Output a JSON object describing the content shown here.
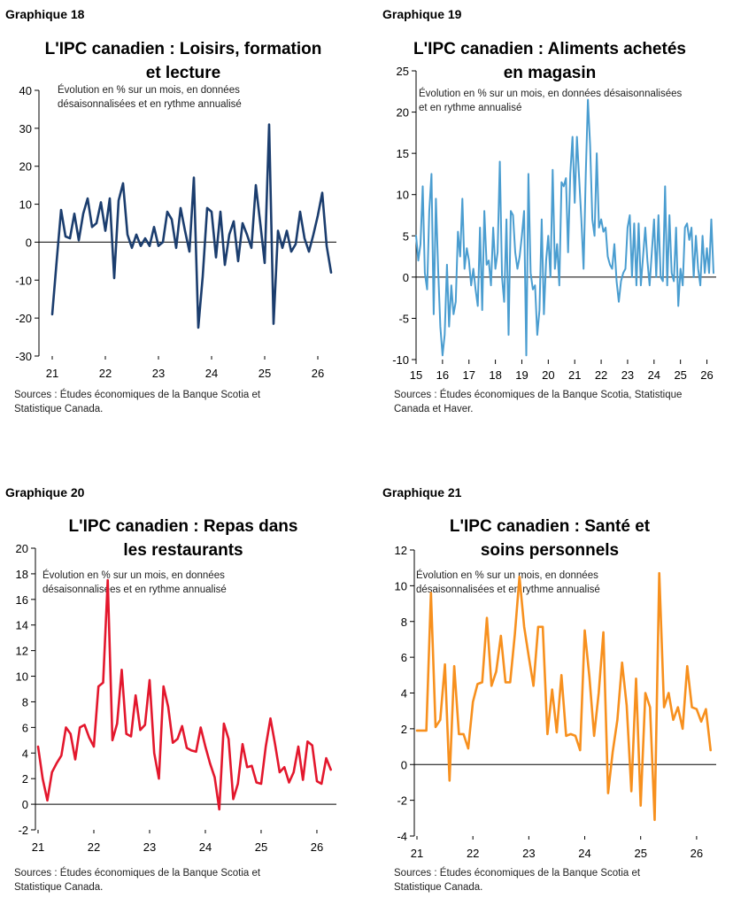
{
  "chart_data": [
    {
      "type": "line",
      "label": "Graphique 18",
      "title_line1": "L'IPC canadien : Loisirs, formation",
      "title_line2": "et lecture",
      "subtitle_line1": "Évolution en % sur un mois, en données",
      "subtitle_line2": "désaisonnalisées et en rythme annualisé",
      "source_line1": "Sources : Études économiques de la Banque Scotia et",
      "source_line2": "Statistique Canada.",
      "color": "#1b3d6e",
      "ylim": [
        -30,
        40
      ],
      "yticks": [
        "-30",
        "-20",
        "-10",
        "0",
        "10",
        "20",
        "30",
        "40"
      ],
      "xlim": [
        21.0,
        26.35
      ],
      "xticks": [
        "21",
        "22",
        "23",
        "24",
        "25",
        "26"
      ],
      "x": [
        21.0,
        21.083,
        21.167,
        21.25,
        21.333,
        21.417,
        21.5,
        21.583,
        21.667,
        21.75,
        21.833,
        21.917,
        22.0,
        22.083,
        22.167,
        22.25,
        22.333,
        22.417,
        22.5,
        22.583,
        22.667,
        22.75,
        22.833,
        22.917,
        23.0,
        23.083,
        23.167,
        23.25,
        23.333,
        23.417,
        23.5,
        23.583,
        23.667,
        23.75,
        23.833,
        23.917,
        24.0,
        24.083,
        24.167,
        24.25,
        24.333,
        24.417,
        24.5,
        24.583,
        24.667,
        24.75,
        24.833,
        24.917,
        25.0,
        25.083,
        25.167,
        25.25,
        25.333,
        25.417,
        25.5,
        25.583,
        25.667,
        25.75,
        25.833,
        25.917,
        26.0,
        26.083,
        26.167,
        26.25
      ],
      "values": [
        -19,
        -5,
        8.5,
        1.5,
        1,
        7.5,
        0.5,
        7.5,
        11.5,
        4,
        5,
        10.5,
        3,
        11.5,
        -9.5,
        11,
        15.5,
        2,
        -1.5,
        2,
        -1,
        1,
        -1,
        4,
        -1,
        0,
        8,
        6,
        -1.5,
        9,
        3,
        -2.5,
        17,
        -22.5,
        -9,
        9,
        8,
        -4,
        8,
        -6,
        2,
        5.5,
        -5,
        5,
        2,
        -1.5,
        15,
        5,
        -5.5,
        31,
        -21.5,
        3,
        -1.5,
        3,
        -2.5,
        -0.5,
        8,
        1,
        -2.5,
        2,
        7,
        13,
        -1,
        -8
      ]
    },
    {
      "type": "line",
      "label": "Graphique 19",
      "title_line1": "L'IPC canadien : Aliments achetés",
      "title_line2": "en magasin",
      "subtitle_line1": "Évolution en % sur un mois, en données désaisonnalisées",
      "subtitle_line2": "et en rythme annualisé",
      "source_line1": "Sources : Études économiques de la Banque Scotia, Statistique",
      "source_line2": "Canada et Haver.",
      "color": "#4a9dd0",
      "ylim": [
        -10,
        25
      ],
      "yticks": [
        "-10",
        "-5",
        "0",
        "5",
        "10",
        "15",
        "20",
        "25"
      ],
      "xlim": [
        15.0,
        26.35
      ],
      "xticks": [
        "15",
        "16",
        "17",
        "18",
        "19",
        "20",
        "21",
        "22",
        "23",
        "24",
        "25",
        "26"
      ],
      "x": [
        15.0,
        15.083,
        15.167,
        15.25,
        15.333,
        15.417,
        15.5,
        15.583,
        15.667,
        15.75,
        15.833,
        15.917,
        16.0,
        16.083,
        16.167,
        16.25,
        16.333,
        16.417,
        16.5,
        16.583,
        16.667,
        16.75,
        16.833,
        16.917,
        17.0,
        17.083,
        17.167,
        17.25,
        17.333,
        17.417,
        17.5,
        17.583,
        17.667,
        17.75,
        17.833,
        17.917,
        18.0,
        18.083,
        18.167,
        18.25,
        18.333,
        18.417,
        18.5,
        18.583,
        18.667,
        18.75,
        18.833,
        18.917,
        19.0,
        19.083,
        19.167,
        19.25,
        19.333,
        19.417,
        19.5,
        19.583,
        19.667,
        19.75,
        19.833,
        19.917,
        20.0,
        20.083,
        20.167,
        20.25,
        20.333,
        20.417,
        20.5,
        20.583,
        20.667,
        20.75,
        20.833,
        20.917,
        21.0,
        21.083,
        21.167,
        21.25,
        21.333,
        21.417,
        21.5,
        21.583,
        21.667,
        21.75,
        21.833,
        21.917,
        22.0,
        22.083,
        22.167,
        22.25,
        22.333,
        22.417,
        22.5,
        22.583,
        22.667,
        22.75,
        22.833,
        22.917,
        23.0,
        23.083,
        23.167,
        23.25,
        23.333,
        23.417,
        23.5,
        23.583,
        23.667,
        23.75,
        23.833,
        23.917,
        24.0,
        24.083,
        24.167,
        24.25,
        24.333,
        24.417,
        24.5,
        24.583,
        24.667,
        24.75,
        24.833,
        24.917,
        25.0,
        25.083,
        25.167,
        25.25,
        25.333,
        25.417,
        25.5,
        25.583,
        25.667,
        25.75,
        25.833,
        25.917,
        26.0,
        26.083,
        26.167,
        26.25
      ],
      "values": [
        5,
        2,
        4,
        11,
        0.5,
        -1.5,
        8,
        12.5,
        -4.5,
        9.5,
        1,
        -6,
        -9.5,
        -7,
        1.5,
        -6,
        -1,
        -4.5,
        -3,
        5.5,
        2.5,
        9.5,
        1,
        3.5,
        2,
        -1,
        1,
        -1.5,
        -3.5,
        6,
        -4,
        8,
        1.5,
        2,
        -1,
        6,
        1,
        3,
        14,
        0,
        -3,
        7,
        -7,
        8,
        7.5,
        3,
        1,
        2.5,
        5,
        8,
        -9.5,
        12.5,
        0.5,
        -1.5,
        -1,
        -7,
        -4,
        7,
        -4.5,
        2,
        5,
        0,
        13,
        1,
        4,
        -1,
        11.5,
        11,
        12,
        3,
        12.5,
        17,
        9,
        17,
        12,
        7,
        1,
        12.5,
        21.5,
        16,
        7,
        5,
        15,
        6,
        7,
        5.5,
        6,
        2.5,
        1.5,
        1,
        4,
        -0.5,
        -3,
        -0.5,
        0.5,
        1,
        6,
        7.5,
        0,
        6.5,
        -1,
        6.5,
        -1,
        2.5,
        6,
        2,
        -1,
        3,
        7,
        0,
        7.5,
        0,
        -0.5,
        11,
        -1,
        7.5,
        0.5,
        -0.5,
        6,
        -3.5,
        1,
        -1,
        6,
        6.5,
        4.5,
        6,
        0,
        5,
        1,
        -1,
        5,
        0.5,
        3.5,
        0.5,
        7,
        0.5
      ]
    },
    {
      "type": "line",
      "label": "Graphique 20",
      "title_line1": "L'IPC canadien : Repas dans",
      "title_line2": "les restaurants",
      "subtitle_line1": "Évolution en % sur un mois, en données",
      "subtitle_line2": "désaisonnalisées et en rythme annualisé",
      "source_line1": "Sources : Études économiques de la Banque Scotia et",
      "source_line2": "Statistique Canada.",
      "color": "#e3172d",
      "ylim": [
        -2,
        20
      ],
      "yticks": [
        "-2",
        "0",
        "2",
        "4",
        "6",
        "8",
        "10",
        "12",
        "14",
        "16",
        "18",
        "20"
      ],
      "xlim": [
        21.0,
        26.35
      ],
      "xticks": [
        "21",
        "22",
        "23",
        "24",
        "25",
        "26"
      ],
      "x": [
        21.0,
        21.083,
        21.167,
        21.25,
        21.333,
        21.417,
        21.5,
        21.583,
        21.667,
        21.75,
        21.833,
        21.917,
        22.0,
        22.083,
        22.167,
        22.25,
        22.333,
        22.417,
        22.5,
        22.583,
        22.667,
        22.75,
        22.833,
        22.917,
        23.0,
        23.083,
        23.167,
        23.25,
        23.333,
        23.417,
        23.5,
        23.583,
        23.667,
        23.75,
        23.833,
        23.917,
        24.0,
        24.083,
        24.167,
        24.25,
        24.333,
        24.417,
        24.5,
        24.583,
        24.667,
        24.75,
        24.833,
        24.917,
        25.0,
        25.083,
        25.167,
        25.25,
        25.333,
        25.417,
        25.5,
        25.583,
        25.667,
        25.75,
        25.833,
        25.917,
        26.0,
        26.083,
        26.167,
        26.25
      ],
      "values": [
        4.5,
        2,
        0.3,
        2.5,
        3.2,
        3.8,
        6,
        5.5,
        3.5,
        6,
        6.2,
        5.2,
        4.5,
        9.2,
        9.5,
        17.5,
        5,
        6.3,
        10.5,
        5.5,
        5.3,
        8.5,
        5.8,
        6.2,
        9.7,
        4,
        2,
        9.2,
        7.6,
        4.8,
        5.1,
        6.1,
        4.4,
        4.2,
        4.1,
        6,
        4.5,
        3.2,
        2.1,
        -0.4,
        6.3,
        5.1,
        0.4,
        1.6,
        4.7,
        2.9,
        3,
        1.7,
        1.6,
        4.5,
        6.7,
        4.7,
        2.5,
        2.9,
        1.7,
        2.5,
        4.5,
        1.9,
        4.9,
        4.6,
        1.8,
        1.6,
        3.6,
        2.7
      ]
    },
    {
      "type": "line",
      "label": "Graphique 21",
      "title_line1": "L'IPC canadien : Santé et",
      "title_line2": "soins personnels",
      "subtitle_line1": "Évolution en % sur un mois, en données",
      "subtitle_line2": "désaisonnalisées et en rythme annualisé",
      "source_line1": "Sources : Études économiques de la Banque Scotia et",
      "source_line2": "Statistique Canada.",
      "color": "#f7901e",
      "ylim": [
        -4,
        12
      ],
      "yticks": [
        "-4",
        "-2",
        "0",
        "2",
        "4",
        "6",
        "8",
        "10",
        "12"
      ],
      "xlim": [
        21.0,
        26.35
      ],
      "xticks": [
        "21",
        "22",
        "23",
        "24",
        "25",
        "26"
      ],
      "x": [
        21.0,
        21.083,
        21.167,
        21.25,
        21.333,
        21.417,
        21.5,
        21.583,
        21.667,
        21.75,
        21.833,
        21.917,
        22.0,
        22.083,
        22.167,
        22.25,
        22.333,
        22.417,
        22.5,
        22.583,
        22.667,
        22.75,
        22.833,
        22.917,
        23.0,
        23.083,
        23.167,
        23.25,
        23.333,
        23.417,
        23.5,
        23.583,
        23.667,
        23.75,
        23.833,
        23.917,
        24.0,
        24.083,
        24.167,
        24.25,
        24.333,
        24.417,
        24.5,
        24.583,
        24.667,
        24.75,
        24.833,
        24.917,
        25.0,
        25.083,
        25.167,
        25.25,
        25.333,
        25.417,
        25.5,
        25.583,
        25.667,
        25.75,
        25.833,
        25.917,
        26.0,
        26.083,
        26.167,
        26.25
      ],
      "values": [
        1.9,
        1.9,
        1.9,
        9.6,
        2.1,
        2.5,
        5.6,
        -0.9,
        5.5,
        1.7,
        1.7,
        0.9,
        3.5,
        4.5,
        4.6,
        8.2,
        4.4,
        5.2,
        7.2,
        4.6,
        4.6,
        7.3,
        10.5,
        7.7,
        6,
        4.4,
        7.7,
        7.7,
        1.7,
        4.2,
        1.8,
        5,
        1.6,
        1.7,
        1.6,
        0.8,
        7.5,
        4.9,
        1.6,
        4,
        7.4,
        -1.6,
        0.7,
        2.5,
        5.7,
        3.3,
        -1.5,
        4.8,
        -2.3,
        4,
        3.2,
        -3.1,
        10.7,
        3.2,
        4,
        2.5,
        3.2,
        2,
        5.5,
        3.2,
        3.1,
        2.4,
        3.1,
        0.8
      ]
    }
  ]
}
